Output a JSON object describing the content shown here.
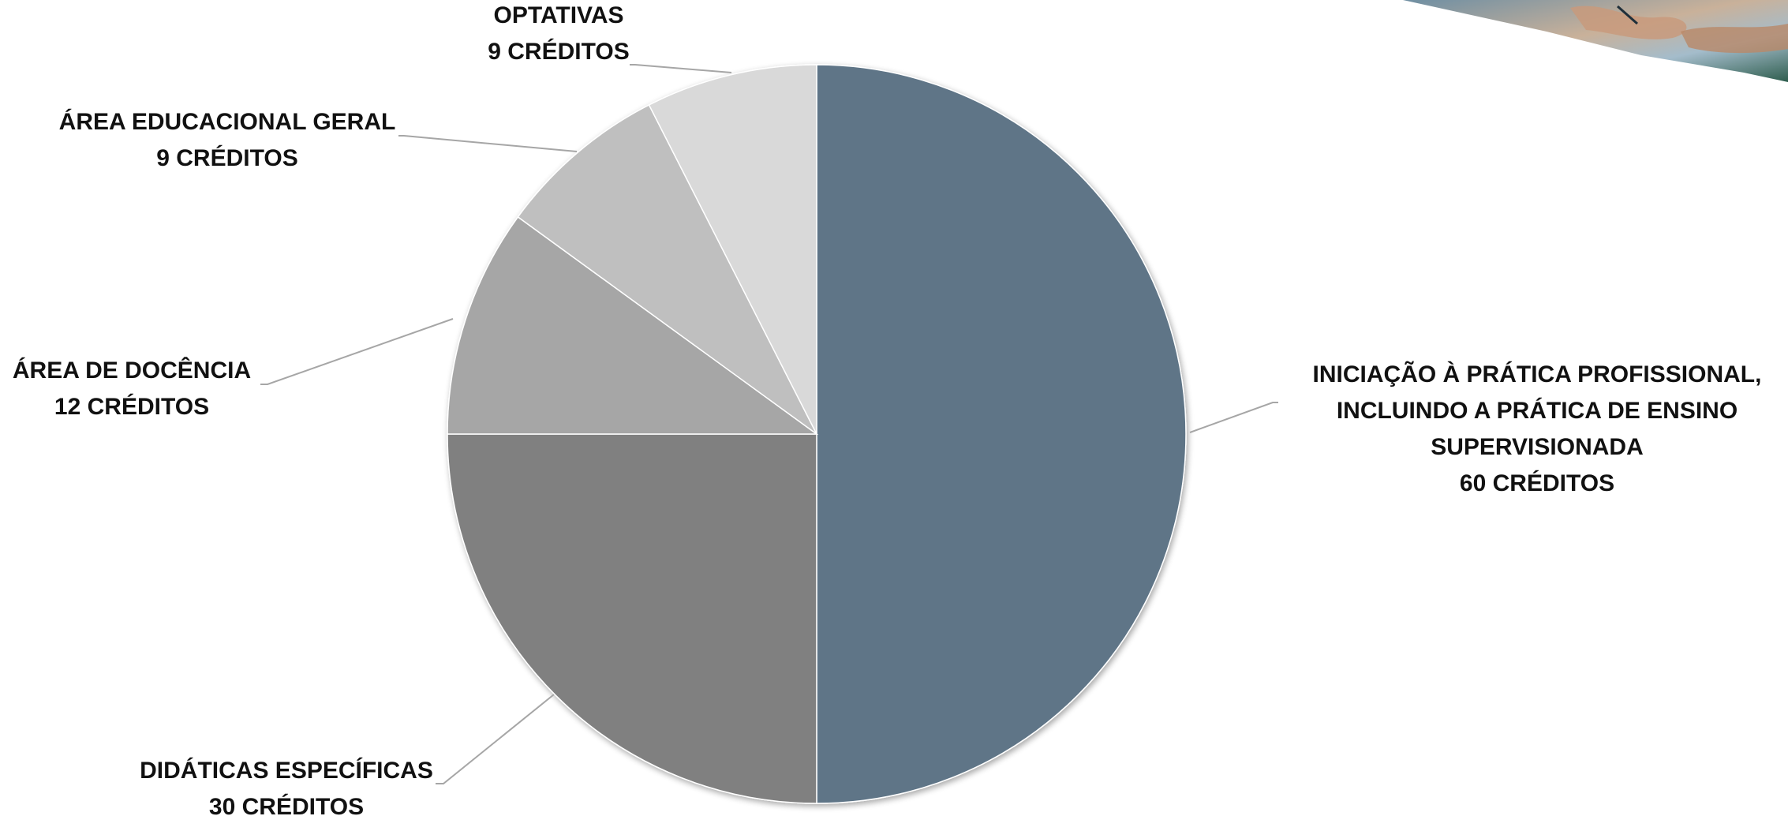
{
  "chart_data": {
    "type": "pie",
    "start_angle_deg": 0,
    "direction": "clockwise",
    "slices": [
      {
        "name": "INICIAÇÃO À PRÁTICA PROFISSIONAL, INCLUINDO A PRÁTICA DE ENSINO SUPERVISIONADA",
        "label_lines": [
          "INICIAÇÃO À PRÁTICA PROFISSIONAL,",
          "INCLUINDO A PRÁTICA DE ENSINO",
          "SUPERVISIONADA",
          "60 CRÉDITOS"
        ],
        "value": 60,
        "color": "#5e7587"
      },
      {
        "name": "DIDÁTICAS ESPECÍFICAS",
        "label_lines": [
          "DIDÁTICAS ESPECÍFICAS",
          "30 CRÉDITOS"
        ],
        "value": 30,
        "color": "#808080"
      },
      {
        "name": "ÁREA DE DOCÊNCIA",
        "label_lines": [
          "ÁREA DE DOCÊNCIA",
          "12 CRÉDITOS"
        ],
        "value": 12,
        "color": "#a6a6a6"
      },
      {
        "name": "ÁREA EDUCACIONAL GERAL",
        "label_lines": [
          "ÁREA EDUCACIONAL GERAL",
          "9 CRÉDITOS"
        ],
        "value": 9,
        "color": "#bfbfbf"
      },
      {
        "name": "OPTATIVAS",
        "label_lines": [
          "OPTATIVAS",
          "9 CRÉDITOS"
        ],
        "value": 9,
        "color": "#d9d9d9"
      }
    ],
    "legend": "none",
    "data_labels": "outside-with-leader-lines"
  },
  "decoration": {
    "top_right_image": "hands-writing-photo-corner"
  }
}
